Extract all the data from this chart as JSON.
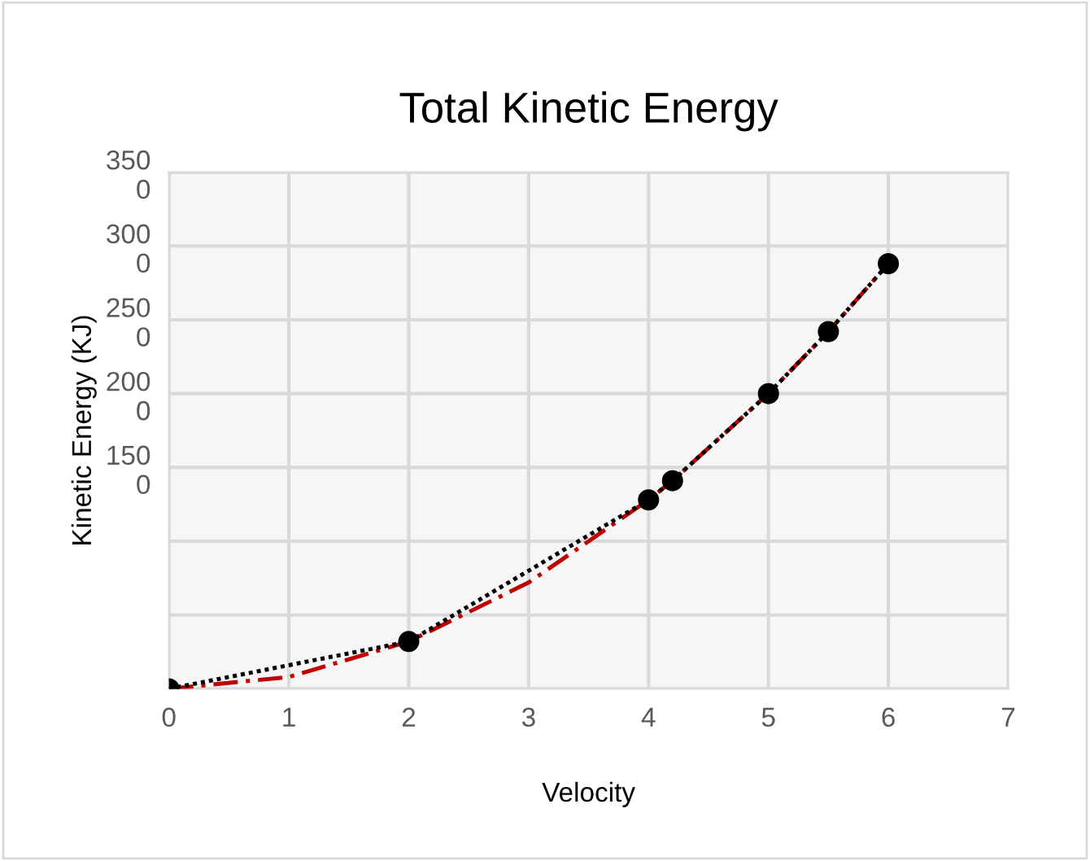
{
  "chart_data": {
    "type": "scatter",
    "title": "Total Kinetic Energy",
    "xlabel": "Velocity",
    "ylabel": "Kinetic Energy (KJ)",
    "xlim": [
      0,
      7
    ],
    "xticks": [
      0,
      1,
      2,
      3,
      4,
      5,
      6,
      7
    ],
    "ylim": [
      0,
      3500
    ],
    "yticks": [
      {
        "value": 0,
        "label": null
      },
      {
        "value": 500,
        "label": null
      },
      {
        "value": 1000,
        "label": null
      },
      1500,
      2000,
      2500,
      3000,
      3500
    ],
    "grid": true,
    "legend": false,
    "series": [
      {
        "type": "line",
        "color": "#c00000",
        "line_style": "dashed",
        "marker": "none",
        "x": [
          0,
          1,
          2,
          3,
          4,
          4.2,
          5,
          5.5,
          6
        ],
        "values": [
          0,
          80,
          320,
          720,
          1280,
          1410,
          2000,
          2420,
          2880
        ]
      },
      {
        "type": "line",
        "color": "#000000",
        "line_style": "dotted",
        "marker": "none",
        "x": [
          0,
          2,
          4,
          4.2,
          5,
          5.5,
          6
        ],
        "values": [
          0,
          320,
          1280,
          1410,
          2000,
          2420,
          2880
        ]
      },
      {
        "color": "#000000",
        "marker": "circle",
        "x": [
          0,
          2,
          4,
          4.2,
          5,
          5.5,
          6
        ],
        "values": [
          0,
          320,
          1280,
          1410,
          2000,
          2420,
          2880
        ]
      }
    ]
  }
}
